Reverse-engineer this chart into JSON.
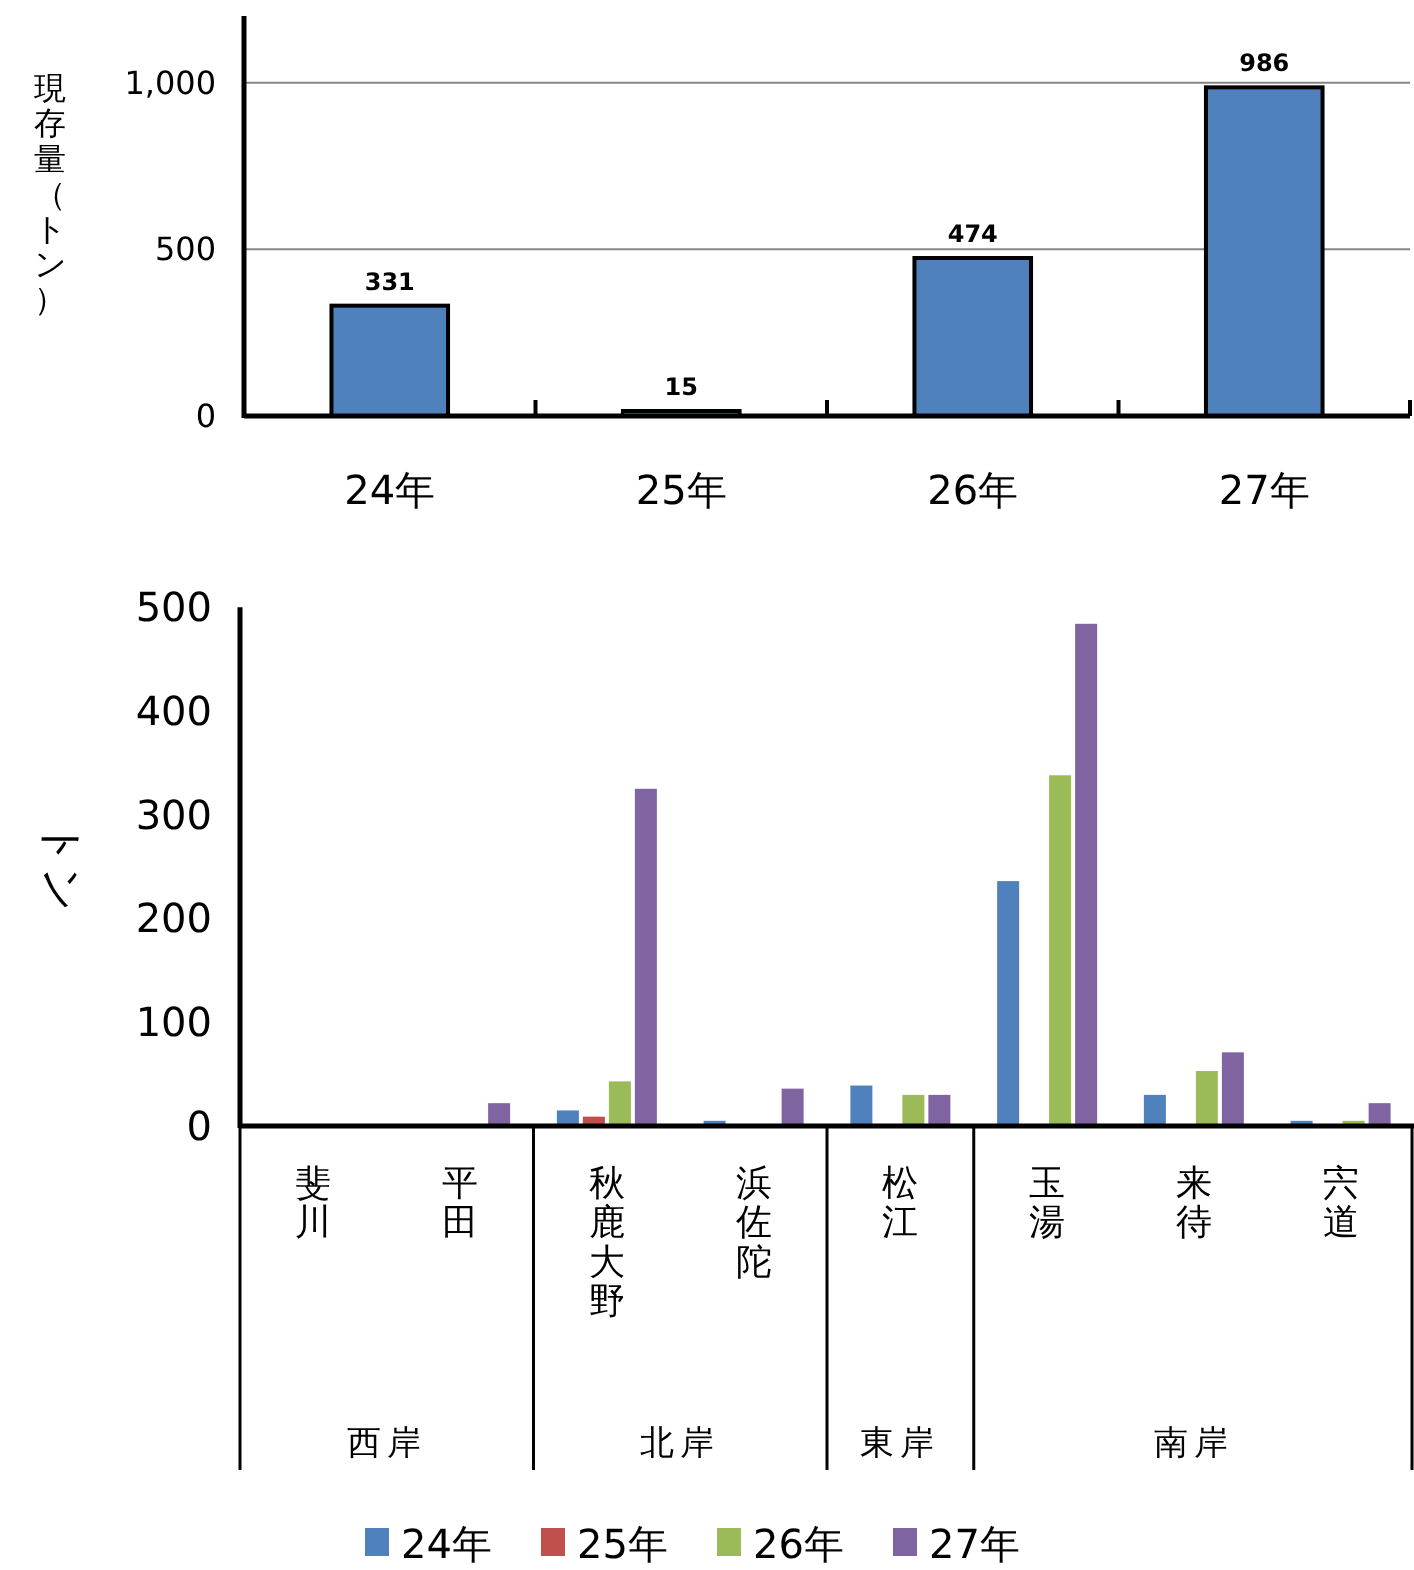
{
  "chart_data": [
    {
      "type": "bar",
      "ylabel": "現存量（トン）",
      "categories": [
        "24年",
        "25年",
        "26年",
        "27年"
      ],
      "values": [
        331,
        15,
        474,
        986
      ],
      "color": "#4f81bd",
      "data_labels": true,
      "ylim": [
        0,
        1200
      ],
      "yticks": [
        0,
        500,
        {
          "value": 1000,
          "label": "1,000"
        }
      ],
      "grid": "y"
    },
    {
      "type": "bar",
      "ylabel": "トン",
      "categories": [
        "斐川",
        "平田",
        "秋鹿大野",
        "浜佐陀",
        "松江",
        "玉湯",
        "来待",
        "宍道"
      ],
      "series": [
        {
          "name": "24年",
          "color": "#4f81bd",
          "values": [
            0,
            0,
            15,
            5,
            39,
            236,
            30,
            5
          ]
        },
        {
          "name": "25年",
          "color": "#c0504d",
          "values": [
            0,
            0,
            9,
            0,
            0,
            0,
            0,
            0
          ]
        },
        {
          "name": "26年",
          "color": "#9bbb59",
          "values": [
            0,
            0,
            43,
            0,
            30,
            338,
            53,
            5
          ]
        },
        {
          "name": "27年",
          "color": "#8064a2",
          "values": [
            0,
            22,
            325,
            36,
            30,
            484,
            71,
            22
          ]
        }
      ],
      "ylim": [
        0,
        500
      ],
      "yticks": [
        0,
        100,
        200,
        300,
        400,
        500
      ],
      "legend": "bottom",
      "annotations": [
        "西岸",
        "北岸",
        "東岸",
        "南岸"
      ]
    }
  ]
}
